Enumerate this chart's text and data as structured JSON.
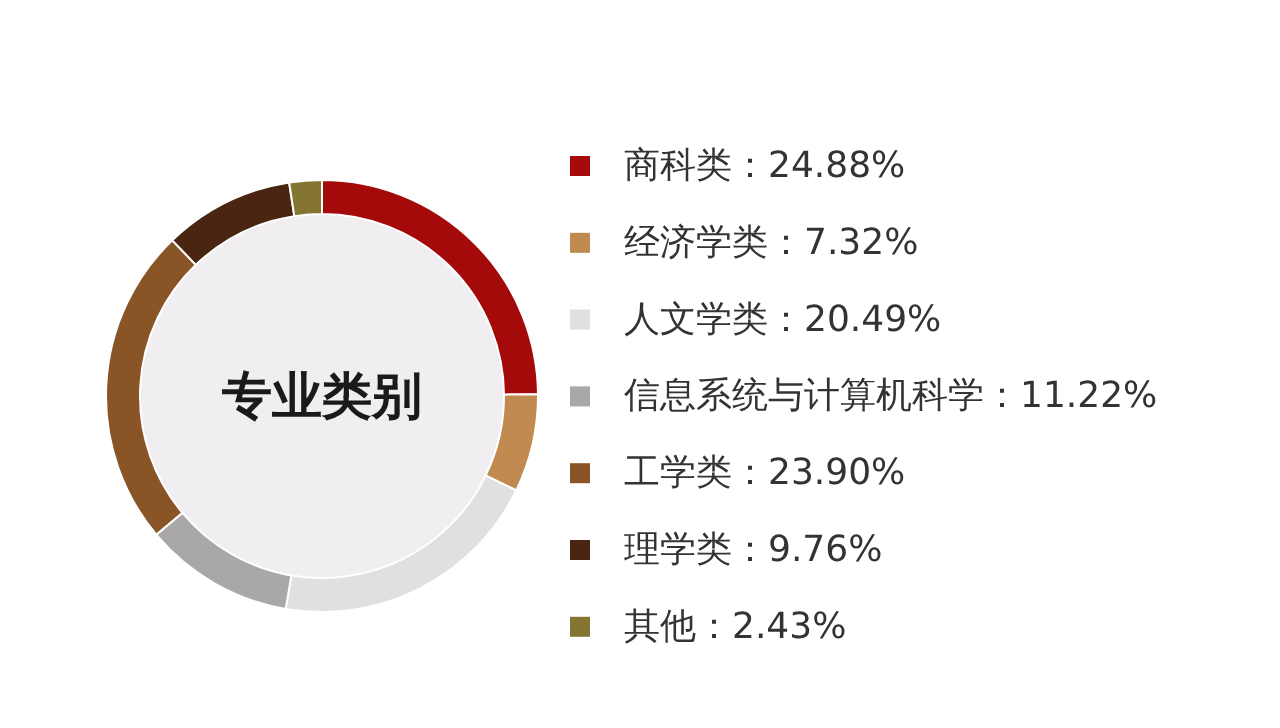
{
  "chart_data": {
    "type": "donut",
    "title": "专业类别",
    "categories": [
      "商科类",
      "经济学类",
      "人文学类",
      "信息系统与计算机科学",
      "工学类",
      "理学类",
      "其他"
    ],
    "values": [
      24.88,
      7.32,
      20.49,
      11.22,
      23.9,
      9.76,
      2.43
    ],
    "value_labels": [
      "：24.88%",
      "：7.32%",
      "：20.49%",
      "：11.22%",
      "：23.90%",
      "：9.76%",
      "：2.43%"
    ],
    "colors": [
      "#a50a0a",
      "#c08a50",
      "#e2dfe0",
      "#a9a7a8",
      "#8a5526",
      "#4a2612",
      "#857532"
    ],
    "legend": "right"
  }
}
